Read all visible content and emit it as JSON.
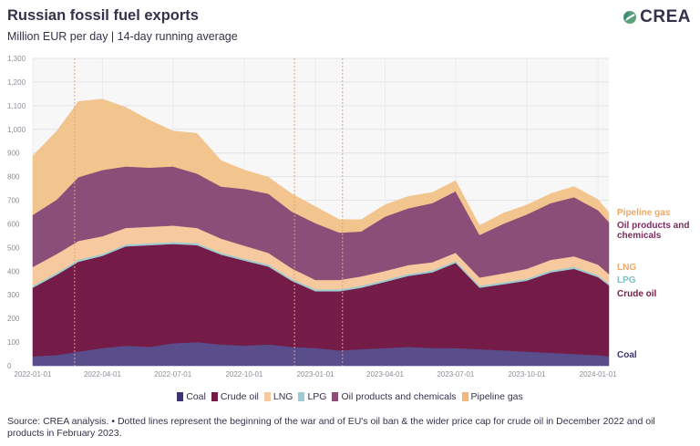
{
  "header": {
    "title": "Russian fossil fuel exports",
    "subtitle": "Million EUR per day | 14-day running average"
  },
  "logo": {
    "text": "CREA"
  },
  "legend": [
    {
      "label": "Coal",
      "color": "#3d3472"
    },
    {
      "label": "Crude oil",
      "color": "#741b47"
    },
    {
      "label": "LNG",
      "color": "#f6c99f"
    },
    {
      "label": "LPG",
      "color": "#9ccbd2"
    },
    {
      "label": "Oil products and chemicals",
      "color": "#8b4e78"
    },
    {
      "label": "Pipeline gas",
      "color": "#f3b97a"
    }
  ],
  "source": "Source: CREA analysis. • Dotted lines represent the beginning of the war and of EU's oil ban & the wider price cap for crude oil in December 2022 and oil products in February 2023.",
  "chart_data": {
    "type": "area",
    "stacked": true,
    "ylim": [
      0,
      1300
    ],
    "yticks": [
      "0",
      "100",
      "200",
      "300",
      "400",
      "500",
      "600",
      "700",
      "800",
      "900",
      "1,000",
      "1,100",
      "1,200",
      "1,300"
    ],
    "xticks": [
      "2022-01-01",
      "2022-04-01",
      "2022-07-01",
      "2022-10-01",
      "2023-01-01",
      "2023-04-01",
      "2023-07-01",
      "2023-10-01",
      "2024-01-01"
    ],
    "x_range": [
      "2022-01-01",
      "2024-01-15"
    ],
    "grid": true,
    "event_lines": [
      "2022-02-24",
      "2022-12-05",
      "2023-02-05"
    ],
    "x": [
      "2022-01-01",
      "2022-02-01",
      "2022-03-01",
      "2022-04-01",
      "2022-05-01",
      "2022-06-01",
      "2022-07-01",
      "2022-08-01",
      "2022-09-01",
      "2022-10-01",
      "2022-11-01",
      "2022-12-01",
      "2023-01-01",
      "2023-02-01",
      "2023-03-01",
      "2023-04-01",
      "2023-05-01",
      "2023-06-01",
      "2023-07-01",
      "2023-08-01",
      "2023-09-01",
      "2023-10-01",
      "2023-11-01",
      "2023-12-01",
      "2024-01-01",
      "2024-01-15"
    ],
    "series": [
      {
        "name": "Coal",
        "color": "#5a4d8c",
        "values": [
          40,
          45,
          60,
          75,
          85,
          80,
          95,
          100,
          90,
          85,
          90,
          80,
          75,
          65,
          70,
          75,
          80,
          75,
          75,
          70,
          65,
          60,
          55,
          50,
          45,
          40
        ]
      },
      {
        "name": "Crude oil",
        "color": "#741b47",
        "values": [
          290,
          340,
          380,
          390,
          420,
          430,
          420,
          410,
          380,
          360,
          330,
          280,
          240,
          250,
          260,
          280,
          300,
          320,
          360,
          260,
          280,
          300,
          340,
          360,
          330,
          300
        ]
      },
      {
        "name": "LPG",
        "color": "#9ccbd2",
        "values": [
          8,
          8,
          8,
          8,
          8,
          8,
          8,
          8,
          8,
          8,
          8,
          8,
          8,
          8,
          8,
          8,
          8,
          8,
          8,
          8,
          8,
          8,
          8,
          8,
          8,
          8
        ]
      },
      {
        "name": "LNG",
        "color": "#f6c99f",
        "values": [
          80,
          80,
          80,
          75,
          70,
          70,
          70,
          65,
          60,
          55,
          50,
          45,
          40,
          40,
          40,
          38,
          38,
          35,
          35,
          35,
          38,
          42,
          45,
          45,
          45,
          40
        ]
      },
      {
        "name": "Oil products and chemicals",
        "color": "#8b4e78",
        "values": [
          220,
          230,
          270,
          280,
          260,
          250,
          250,
          230,
          220,
          240,
          250,
          240,
          240,
          200,
          190,
          230,
          240,
          250,
          260,
          180,
          210,
          230,
          240,
          250,
          230,
          220
        ]
      },
      {
        "name": "Pipeline gas",
        "color": "#f3c58e",
        "values": [
          250,
          290,
          320,
          300,
          250,
          200,
          150,
          170,
          110,
          80,
          70,
          75,
          70,
          55,
          50,
          50,
          50,
          45,
          45,
          40,
          45,
          40,
          40,
          45,
          45,
          40
        ]
      }
    ],
    "right_labels": [
      {
        "label": "Pipeline gas",
        "color": "#e9a96a"
      },
      {
        "label": "Oil products and chemicals",
        "color": "#7b2d5e"
      },
      {
        "label": "LNG",
        "color": "#e9a96a"
      },
      {
        "label": "LPG",
        "color": "#7fbcc6"
      },
      {
        "label": "Crude oil",
        "color": "#741b47"
      },
      {
        "label": "Coal",
        "color": "#3d3472"
      }
    ]
  }
}
